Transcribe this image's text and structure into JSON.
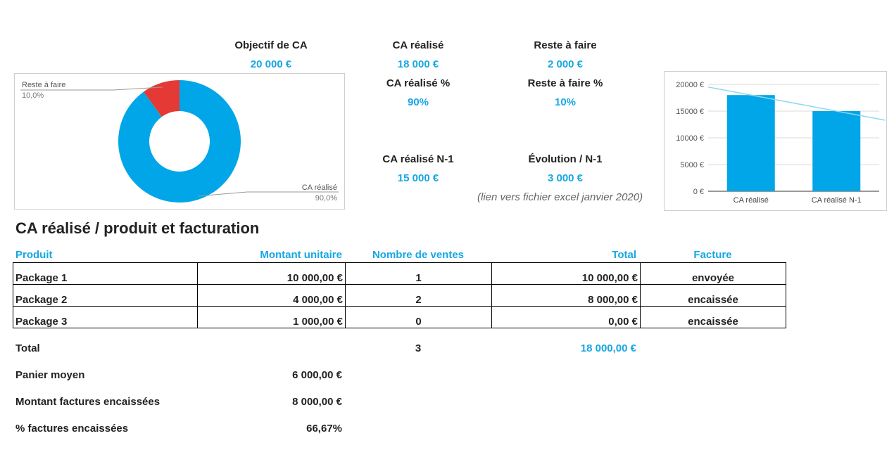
{
  "kpis": {
    "objectif_label": "Objectif de CA",
    "objectif_value": "20 000 €",
    "ca_realise_label": "CA réalisé",
    "ca_realise_value": "18 000 €",
    "reste_label": "Reste à faire",
    "reste_value": "2 000 €",
    "ca_pct_label": "CA réalisé %",
    "ca_pct_value": "90%",
    "reste_pct_label": "Reste à faire %",
    "reste_pct_value": "10%",
    "ca_n1_label": "CA réalisé N-1",
    "ca_n1_value": "15 000 €",
    "evolution_label": "Évolution / N-1",
    "evolution_value": "3 000 €",
    "note": "(lien vers fichier excel janvier 2020)"
  },
  "colors": {
    "accent": "#16a7e3",
    "bar": "#00a6e8",
    "pie_main": "#00a6e8",
    "pie_rest": "#e53935",
    "trend": "#8fd8ef"
  },
  "chart_data": [
    {
      "type": "pie",
      "slices": [
        {
          "label": "Reste à faire",
          "value": 10.0,
          "value_label": "10,0%"
        },
        {
          "label": "CA réalisé",
          "value": 90.0,
          "value_label": "90,0%"
        }
      ]
    },
    {
      "type": "bar",
      "categories": [
        "CA réalisé",
        "CA réalisé N-1"
      ],
      "values": [
        18000,
        15000
      ],
      "ylim": [
        0,
        20000
      ],
      "yticks": [
        "0 €",
        "5000 €",
        "10000 €",
        "15000 €",
        "20000 €"
      ],
      "yticks_values": [
        0,
        5000,
        10000,
        15000,
        20000
      ],
      "trendline": true,
      "grid": true
    }
  ],
  "section_title": "CA réalisé / produit et facturation",
  "table": {
    "headers": {
      "produit": "Produit",
      "montant": "Montant unitaire",
      "nombre": "Nombre de ventes",
      "total": "Total",
      "facture": "Facture"
    },
    "rows": [
      {
        "produit": "Package 1",
        "montant": "10 000,00 €",
        "nombre": "1",
        "total": "10 000,00 €",
        "facture": "envoyée"
      },
      {
        "produit": "Package 2",
        "montant": "4 000,00 €",
        "nombre": "2",
        "total": "8 000,00 €",
        "facture": "encaissée"
      },
      {
        "produit": "Package 3",
        "montant": "1 000,00 €",
        "nombre": "0",
        "total": "0,00 €",
        "facture": "encaissée"
      }
    ]
  },
  "summary": {
    "total_label": "Total",
    "total_count": "3",
    "total_amount": "18 000,00 €",
    "panier_label": "Panier moyen",
    "panier_value": "6 000,00 €",
    "encaisse_label": "Montant factures encaissées",
    "encaisse_value": "8 000,00 €",
    "pct_label": "% factures encaissées",
    "pct_value": "66,67%"
  }
}
